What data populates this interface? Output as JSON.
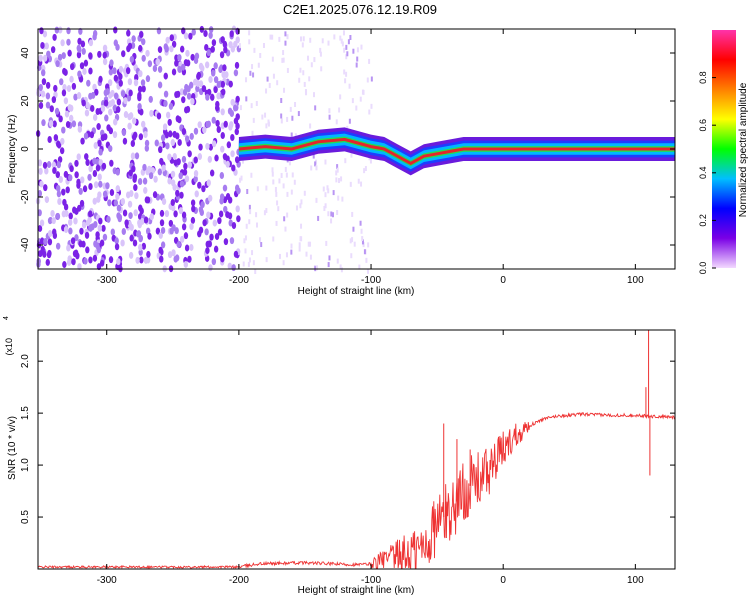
{
  "title": "C2E1.2025.076.12.19.R09",
  "chart_data": [
    {
      "type": "heatmap",
      "xlabel": "Height of straight line (km)",
      "ylabel": "Frequency (Hz)",
      "xlim": [
        -352,
        130
      ],
      "ylim": [
        -50,
        50
      ],
      "x_ticks": [
        "-300",
        "-200",
        "-100",
        "0",
        "100"
      ],
      "y_ticks": [
        "-40",
        "-20",
        "0",
        "20",
        "40"
      ],
      "colorbar": {
        "label": "Normalized spectral amplitude",
        "range": [
          0,
          1
        ],
        "ticks": [
          "0.0",
          "0.2",
          "0.4",
          "0.6",
          "0.8"
        ],
        "colors": [
          "#f3d9ff",
          "#7a00e6",
          "#0000ff",
          "#00bfff",
          "#00ff00",
          "#ffff00",
          "#ff8000",
          "#ff0000",
          "#ff33aa"
        ]
      },
      "ridge": {
        "description_x": [
          -200,
          -180,
          -160,
          -140,
          -120,
          -100,
          -90,
          -80,
          -70,
          -60,
          -50,
          -40,
          -30,
          -20,
          0,
          100,
          130
        ],
        "freq_hz": [
          0,
          1,
          0,
          3,
          4,
          1,
          0,
          -3,
          -6,
          -3,
          -2,
          -1,
          0,
          0,
          0,
          0,
          0
        ]
      },
      "noise_region_end_x": -200,
      "sparse_region_end_x": -100
    },
    {
      "type": "line",
      "xlabel": "Height of straight line (km)",
      "ylabel": "SNR (10 * v/v)",
      "y_multiplier": "(x10",
      "y_multiplier_exp": "4",
      "xlim": [
        -352,
        130
      ],
      "ylim": [
        0,
        2.3
      ],
      "x_ticks": [
        "-300",
        "-200",
        "-100",
        "0",
        "100"
      ],
      "y_ticks": [
        "0.5",
        "1.0",
        "1.5",
        "2.0"
      ],
      "color": "#ee3333",
      "x": [
        -352,
        -200,
        -185,
        -150,
        -110,
        -100,
        -80,
        -60,
        -50,
        -40,
        -30,
        -20,
        -10,
        0,
        10,
        20,
        30,
        40,
        60,
        80,
        100,
        110,
        130
      ],
      "y": [
        0.02,
        0.02,
        0.05,
        0.06,
        0.04,
        0.05,
        0.1,
        0.2,
        0.45,
        0.55,
        0.75,
        0.85,
        0.95,
        1.15,
        1.3,
        1.38,
        1.44,
        1.47,
        1.49,
        1.48,
        1.48,
        1.47,
        1.46
      ],
      "spikes": [
        {
          "x": -45,
          "y": 1.4
        },
        {
          "x": -35,
          "y": 1.25
        },
        {
          "x": -25,
          "y": 1.15
        },
        {
          "x": 108,
          "y": 1.75
        },
        {
          "x": 110,
          "y": 2.3
        },
        {
          "x": 111,
          "y": 0.9
        }
      ]
    }
  ]
}
